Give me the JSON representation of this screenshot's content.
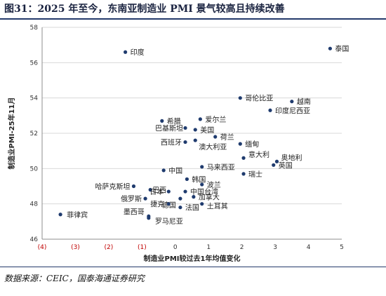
{
  "title": "图31：2025 年至今，东南亚制造业 PMI 景气较高且持续改善",
  "source": "数据来源：CEIC，国泰海通证券研究",
  "colors": {
    "point": "#1f3b6e",
    "negative_tick": "#c00000",
    "accent": "#243a6b"
  },
  "chart_data": {
    "type": "scatter",
    "xlabel": "制造业PMI较过去1年均值变化",
    "ylabel": "制造业PMI-25年11月",
    "xlim": [
      -4,
      5
    ],
    "ylim": [
      46,
      58
    ],
    "x_ticks": [
      -4,
      -3,
      -2,
      -1,
      0,
      1,
      2,
      3,
      4,
      5
    ],
    "x_tick_labels": [
      "(4)",
      "(3)",
      "(2)",
      "(1)",
      "0",
      "1",
      "2",
      "3",
      "4",
      "5"
    ],
    "y_ticks": [
      46,
      48,
      50,
      52,
      54,
      56,
      58
    ],
    "y_tick_labels": [
      "46",
      "48",
      "50",
      "52",
      "54",
      "56",
      "58"
    ],
    "points": [
      {
        "label": "泰国",
        "x": 4.65,
        "y": 56.8
      },
      {
        "label": "印度",
        "x": -1.5,
        "y": 56.6
      },
      {
        "label": "哥伦比亚",
        "x": 1.95,
        "y": 54.0
      },
      {
        "label": "越南",
        "x": 3.5,
        "y": 53.8
      },
      {
        "label": "印度尼西亚",
        "x": 2.85,
        "y": 53.3
      },
      {
        "label": "希腊",
        "x": -0.4,
        "y": 52.7
      },
      {
        "label": "爱尔兰",
        "x": 0.75,
        "y": 52.8
      },
      {
        "label": "巴基斯坦",
        "x": 0.3,
        "y": 52.3
      },
      {
        "label": "美国",
        "x": 0.6,
        "y": 52.2
      },
      {
        "label": "荷兰",
        "x": 1.2,
        "y": 51.8
      },
      {
        "label": "西班牙",
        "x": 0.3,
        "y": 51.5
      },
      {
        "label": "澳大利亚",
        "x": 0.6,
        "y": 51.6
      },
      {
        "label": "缅甸",
        "x": 1.95,
        "y": 51.4
      },
      {
        "label": "意大利",
        "x": 2.05,
        "y": 50.6
      },
      {
        "label": "奥地利",
        "x": 3.05,
        "y": 50.4
      },
      {
        "label": "英国",
        "x": 2.95,
        "y": 50.2
      },
      {
        "label": "马来西亚",
        "x": 0.8,
        "y": 50.1
      },
      {
        "label": "中国",
        "x": -0.35,
        "y": 49.9
      },
      {
        "label": "瑞士",
        "x": 2.05,
        "y": 49.7
      },
      {
        "label": "韩国",
        "x": 0.35,
        "y": 49.4
      },
      {
        "label": "哈萨克斯坦",
        "x": -1.25,
        "y": 49.0
      },
      {
        "label": "波兰",
        "x": 0.8,
        "y": 49.1
      },
      {
        "label": "巴西",
        "x": -0.75,
        "y": 48.8
      },
      {
        "label": "日本",
        "x": -0.2,
        "y": 48.7
      },
      {
        "label": "中国台湾",
        "x": 0.3,
        "y": 48.7
      },
      {
        "label": "俄罗斯",
        "x": -0.9,
        "y": 48.3
      },
      {
        "label": "德国",
        "x": 0.15,
        "y": 48.3
      },
      {
        "label": "加拿大",
        "x": 0.55,
        "y": 48.4
      },
      {
        "label": "捷克",
        "x": -0.2,
        "y": 48.0
      },
      {
        "label": "土耳其",
        "x": 0.8,
        "y": 48.0
      },
      {
        "label": "法国",
        "x": 0.15,
        "y": 47.8
      },
      {
        "label": "菲律宾",
        "x": -3.45,
        "y": 47.4
      },
      {
        "label": "墨西哥",
        "x": -0.8,
        "y": 47.3
      },
      {
        "label": "罗马尼亚",
        "x": -0.8,
        "y": 47.2
      }
    ]
  }
}
